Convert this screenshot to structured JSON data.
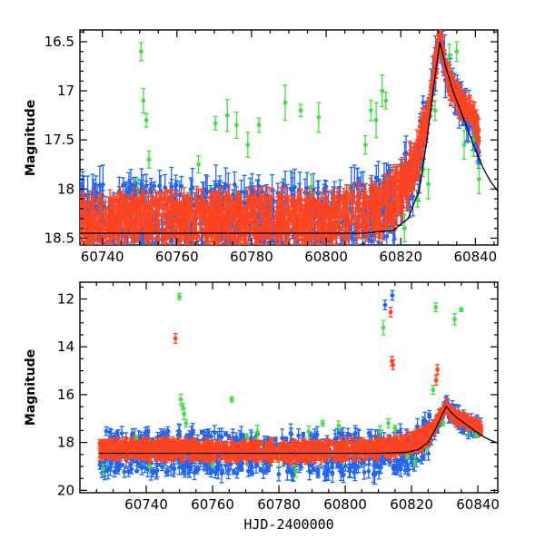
{
  "chart_data": [
    {
      "type": "scatter",
      "title": "",
      "xlabel": "",
      "ylabel": "Magnitude",
      "xlim": [
        60734,
        60846
      ],
      "ylim": [
        18.57,
        16.38
      ],
      "y_inverted": true,
      "xticks": [
        60740,
        60760,
        60780,
        60800,
        60820,
        60840
      ],
      "xtick_labels": [
        "60740",
        "60760",
        "60780",
        "60800",
        "60820",
        "60840"
      ],
      "yticks": [
        16.5,
        17,
        17.5,
        18,
        18.5
      ],
      "ytick_labels": [
        "16.5",
        "17",
        "17.5",
        "18",
        "18.5"
      ],
      "grid": false,
      "series": [
        {
          "color": "#2266ee",
          "marker": "circle-errorbar",
          "baseline": {
            "x": [
              60734,
              60745,
              60760,
              60775,
              60790,
              60805,
              60815,
              60820,
              60824,
              60827,
              60829,
              60830.5,
              60832,
              60834,
              60836,
              60838,
              60840,
              60841
            ],
            "y": [
              18.3,
              18.3,
              18.3,
              18.3,
              18.3,
              18.3,
              18.2,
              18.05,
              17.8,
              17.3,
              16.8,
              16.45,
              16.8,
              17.0,
              17.15,
              17.3,
              17.4,
              17.6
            ]
          },
          "scatter_mag": 0.35
        },
        {
          "color": "#ff4422",
          "marker": "circle-errorbar",
          "baseline": {
            "x": [
              60734,
              60745,
              60760,
              60775,
              60790,
              60805,
              60815,
              60820,
              60824,
              60827,
              60829,
              60830.5,
              60832,
              60834,
              60836,
              60838,
              60840,
              60841
            ],
            "y": [
              18.35,
              18.3,
              18.3,
              18.3,
              18.3,
              18.3,
              18.2,
              18.0,
              17.75,
              17.3,
              16.8,
              16.45,
              16.8,
              17.0,
              17.1,
              17.2,
              17.3,
              17.5
            ]
          },
          "scatter_mag": 0.22
        },
        {
          "color": "#44dd44",
          "marker": "circle-errorbar",
          "points": [
            [
              60750.4,
              16.6
            ],
            [
              60751,
              17.1
            ],
            [
              60751.8,
              17.3
            ],
            [
              60752.5,
              17.7
            ],
            [
              60749.5,
              18.0
            ],
            [
              60765.8,
              17.75
            ],
            [
              60770.3,
              17.33
            ],
            [
              60773.5,
              17.25
            ],
            [
              60776,
              17.35
            ],
            [
              60779,
              17.55
            ],
            [
              60782,
              17.35
            ],
            [
              60789,
              17.12
            ],
            [
              60793.2,
              17.2
            ],
            [
              60796,
              17.98
            ],
            [
              60798,
              17.27
            ],
            [
              60806,
              18.1
            ],
            [
              60810.5,
              17.55
            ],
            [
              60812,
              17.2
            ],
            [
              60813.4,
              17.3
            ],
            [
              60815,
              17.0
            ],
            [
              60816,
              17.1
            ],
            [
              60818.8,
              18.2
            ],
            [
              60821,
              18.4
            ],
            [
              60824.5,
              18.1
            ],
            [
              60826,
              17.8
            ],
            [
              60827.4,
              17.95
            ],
            [
              60829.2,
              17.2
            ],
            [
              60833,
              16.65
            ],
            [
              60835,
              16.6
            ],
            [
              60837,
              17.55
            ],
            [
              60839.5,
              17.5
            ],
            [
              60841,
              17.9
            ],
            [
              60733.5,
              18.3
            ],
            [
              60740,
              18.45
            ],
            [
              60744,
              18.2
            ],
            [
              60757,
              18.45
            ],
            [
              60760,
              18.35
            ],
            [
              60763,
              18.2
            ]
          ]
        }
      ],
      "model_curve": {
        "color": "#000000",
        "x": [
          60734,
          60760,
          60790,
          60810,
          60818,
          60822,
          60825,
          60827,
          60829,
          60830.5,
          60832,
          60834,
          60836,
          60838,
          60840,
          60842,
          60844,
          60846
        ],
        "y": [
          18.45,
          18.45,
          18.45,
          18.45,
          18.42,
          18.3,
          18.0,
          17.5,
          16.9,
          16.5,
          16.75,
          17.0,
          17.2,
          17.4,
          17.6,
          17.78,
          17.92,
          18.02
        ]
      }
    },
    {
      "type": "scatter",
      "title": "",
      "xlabel": "HJD-2400000",
      "ylabel": "Magnitude",
      "xlim": [
        60720,
        60846
      ],
      "ylim": [
        20.1,
        11.3
      ],
      "y_inverted": true,
      "xticks": [
        60740,
        60760,
        60780,
        60800,
        60820,
        60840
      ],
      "xtick_labels": [
        "60740",
        "60760",
        "60780",
        "60800",
        "60820",
        "60840"
      ],
      "yticks": [
        12,
        14,
        16,
        18,
        20
      ],
      "ytick_labels": [
        "12",
        "14",
        "16",
        "18",
        "20"
      ],
      "grid": false,
      "series": [
        {
          "color": "#2266ee",
          "marker": "circle-errorbar",
          "baseline": {
            "x": [
              60726,
              60745,
              60760,
              60775,
              60790,
              60805,
              60815,
              60820,
              60824,
              60827,
              60829,
              60830.5,
              60832,
              60834,
              60836,
              60838,
              60840,
              60841
            ],
            "y": [
              18.4,
              18.4,
              18.45,
              18.5,
              18.5,
              18.5,
              18.4,
              18.2,
              17.9,
              17.4,
              16.9,
              16.5,
              16.8,
              17.0,
              17.15,
              17.3,
              17.4,
              17.6
            ]
          },
          "scatter_mag": 0.9,
          "outliers": [
            [
              60814.2,
              11.85
            ],
            [
              60812,
              12.25
            ]
          ]
        },
        {
          "color": "#ff4422",
          "marker": "circle-errorbar",
          "baseline": {
            "x": [
              60726,
              60745,
              60760,
              60775,
              60790,
              60805,
              60815,
              60820,
              60824,
              60827,
              60829,
              60830.5,
              60832,
              60834,
              60836,
              60838,
              60840,
              60841
            ],
            "y": [
              18.3,
              18.3,
              18.35,
              18.35,
              18.35,
              18.3,
              18.2,
              18.0,
              17.8,
              17.3,
              16.8,
              16.45,
              16.8,
              17.0,
              17.1,
              17.2,
              17.3,
              17.5
            ]
          },
          "scatter_mag": 0.35,
          "outliers": [
            [
              60748.8,
              13.65
            ],
            [
              60813.7,
              12.55
            ],
            [
              60814.1,
              14.6
            ],
            [
              60814.4,
              14.75
            ],
            [
              60827.4,
              15.4
            ],
            [
              60827.8,
              14.95
            ]
          ]
        },
        {
          "color": "#44dd44",
          "marker": "circle-errorbar",
          "points": [
            [
              60750,
              11.9
            ],
            [
              60750.4,
              16.2
            ],
            [
              60751,
              16.5
            ],
            [
              60751.4,
              16.8
            ],
            [
              60752,
              17.2
            ],
            [
              60765.8,
              16.2
            ],
            [
              60770.3,
              17.75
            ],
            [
              60773.5,
              17.55
            ],
            [
              60789,
              17.55
            ],
            [
              60793.2,
              17.2
            ],
            [
              60798,
              17.3
            ],
            [
              60806,
              18.1
            ],
            [
              60810.5,
              17.55
            ],
            [
              60811.5,
              13.2
            ],
            [
              60813,
              17.2
            ],
            [
              60815,
              17.4
            ],
            [
              60818.8,
              18.6
            ],
            [
              60821,
              18.8
            ],
            [
              60824.5,
              18.2
            ],
            [
              60826.5,
              15.8
            ],
            [
              60827.3,
              12.35
            ],
            [
              60829.5,
              17.2
            ],
            [
              60833,
              12.85
            ],
            [
              60835,
              12.45
            ],
            [
              60837,
              17.5
            ],
            [
              60839.5,
              17.7
            ],
            [
              60727,
              19.1
            ],
            [
              60729,
              18.1
            ],
            [
              60733,
              18.5
            ],
            [
              60737,
              17.8
            ],
            [
              60741,
              19.0
            ],
            [
              60745,
              18.3
            ],
            [
              60748.5,
              18.0
            ],
            [
              60755,
              18.6
            ],
            [
              60760,
              18.9
            ],
            [
              60775,
              18.5
            ],
            [
              60780,
              18.7
            ],
            [
              60785,
              19.2
            ],
            [
              60795,
              18.4
            ],
            [
              60800,
              18.2
            ]
          ]
        }
      ],
      "model_curve": {
        "color": "#000000",
        "x": [
          60726,
          60760,
          60790,
          60810,
          60818,
          60822,
          60825,
          60827,
          60829,
          60830.5,
          60832,
          60834,
          60836,
          60838,
          60840,
          60842,
          60844,
          60846
        ],
        "y": [
          18.45,
          18.45,
          18.45,
          18.45,
          18.42,
          18.3,
          18.0,
          17.5,
          16.9,
          16.5,
          16.75,
          17.0,
          17.2,
          17.4,
          17.6,
          17.78,
          17.92,
          18.02
        ]
      }
    }
  ]
}
